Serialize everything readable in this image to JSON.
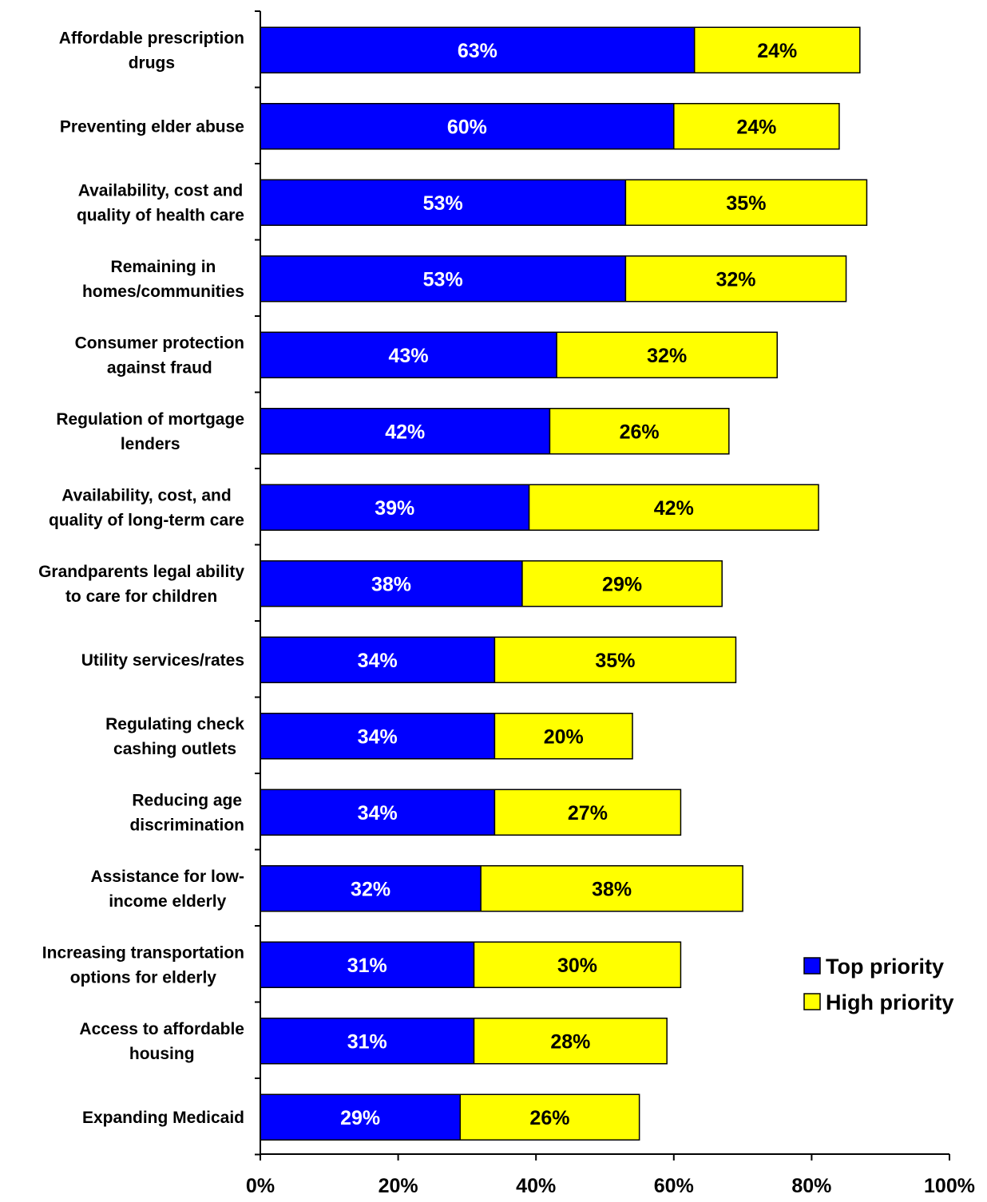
{
  "chart_data": {
    "type": "bar",
    "orientation": "horizontal",
    "stacked": true,
    "categories": [
      [
        "Affordable prescription",
        "drugs"
      ],
      [
        "Preventing elder abuse"
      ],
      [
        "Availability, cost and",
        "quality of health care"
      ],
      [
        "Remaining in",
        "homes/communities"
      ],
      [
        "Consumer protection",
        "against fraud"
      ],
      [
        "Regulation of mortgage",
        "lenders"
      ],
      [
        "Availability, cost, and",
        "quality of long-term care"
      ],
      [
        "Grandparents legal ability",
        "to care for children"
      ],
      [
        "Utility services/rates"
      ],
      [
        "Regulating  check",
        "cashing outlets"
      ],
      [
        "Reducing age",
        "discrimination"
      ],
      [
        "Assistance for low-",
        "income elderly"
      ],
      [
        "Increasing transportation",
        "options for elderly"
      ],
      [
        "Access to affordable",
        "housing"
      ],
      [
        "Expanding Medicaid"
      ]
    ],
    "series": [
      {
        "name": "Top priority",
        "color": "#0000ff",
        "label_color": "#ffffff",
        "values": [
          63,
          60,
          53,
          53,
          43,
          42,
          39,
          38,
          34,
          34,
          34,
          32,
          31,
          31,
          29
        ],
        "labels": [
          "63%",
          "60%",
          "53%",
          "53%",
          "43%",
          "42%",
          "39%",
          "38%",
          "34%",
          "34%",
          "34%",
          "32%",
          "31%",
          "31%",
          "29%"
        ]
      },
      {
        "name": "High priority",
        "color": "#ffff00",
        "label_color": "#000000",
        "values": [
          24,
          24,
          35,
          32,
          32,
          26,
          42,
          29,
          35,
          20,
          27,
          38,
          30,
          28,
          26
        ],
        "labels": [
          "24%",
          "24%",
          "35%",
          "32%",
          "32%",
          "26%",
          "42%",
          "29%",
          "35%",
          "20%",
          "27%",
          "38%",
          "30%",
          "28%",
          "26%"
        ]
      }
    ],
    "xlim": [
      0,
      100
    ],
    "xticks": [
      0,
      20,
      40,
      60,
      80,
      100
    ],
    "xtick_labels": [
      "0%",
      "20%",
      "40%",
      "60%",
      "80%",
      "100%"
    ],
    "title": "",
    "xlabel": "",
    "ylabel": "",
    "grid": false,
    "legend_position": "bottom-right"
  }
}
